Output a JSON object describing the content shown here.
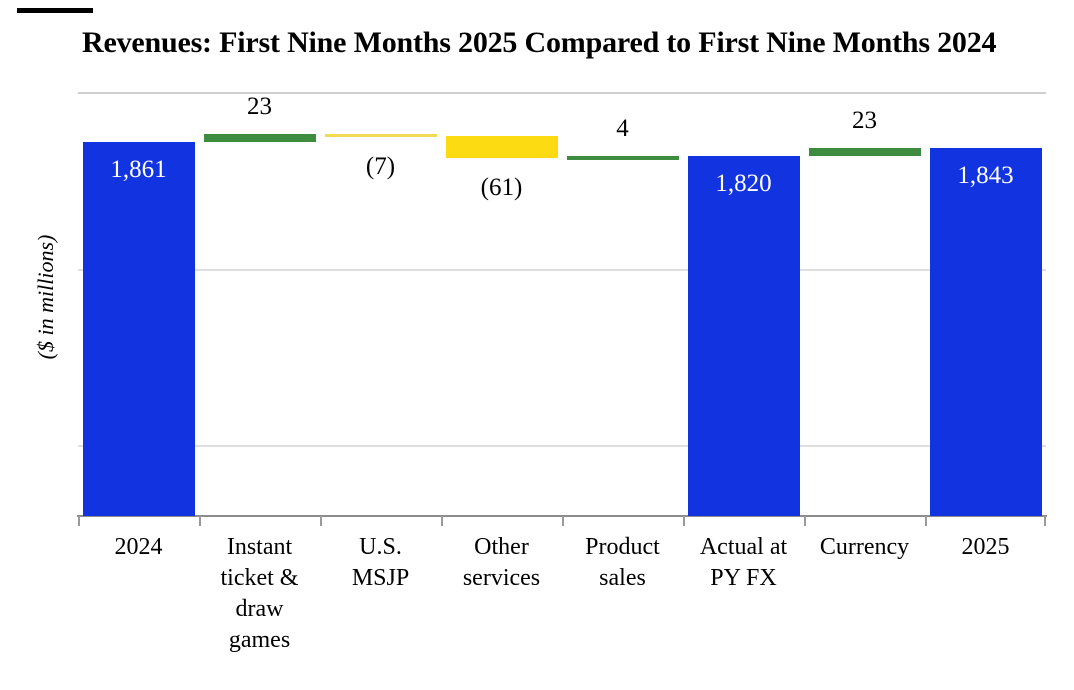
{
  "page": {
    "title": "Revenues: First Nine Months 2025 Compared to First Nine Months 2024",
    "ylabel": "($ in millions)"
  },
  "colors": {
    "blue": "#1233e0",
    "green": "#3d8c40",
    "yellow": "#fcdb12",
    "yellow_light": "#f2dc55",
    "gridline": "#dfdfdf",
    "axis": "#8c8c8c",
    "label_inside": "#ffffff",
    "label_outside": "#000000"
  },
  "chart_data": {
    "type": "bar",
    "subtype": "waterfall",
    "title": "Revenues: First Nine Months 2025 Compared to First Nine Months 2024",
    "xlabel": "",
    "ylabel": "($ in millions)",
    "ylim": [
      800,
      2000
    ],
    "gridline_values": [
      2000,
      1500,
      1000
    ],
    "grid": "on",
    "legend": "none",
    "categories": [
      "2024",
      "Instant ticket & draw games",
      "U.S. MSJP",
      "Other services",
      "Product sales",
      "Actual at PY FX",
      "Currency",
      "2025"
    ],
    "values": [
      1861,
      23,
      -7,
      -61,
      4,
      1820,
      23,
      1843
    ],
    "bars": [
      {
        "label": "2024",
        "value": 1861,
        "display": "1,861",
        "kind": "total",
        "start": 800,
        "end": 1861,
        "color": "blue",
        "label_pos": "inside"
      },
      {
        "label": "Instant ticket & draw games",
        "value": 23,
        "display": "23",
        "kind": "increase",
        "start": 1861,
        "end": 1884,
        "color": "green",
        "label_pos": "above"
      },
      {
        "label": "U.S. MSJP",
        "value": -7,
        "display": "(7)",
        "kind": "decrease",
        "start": 1884,
        "end": 1877,
        "color": "yellow_light",
        "label_pos": "below"
      },
      {
        "label": "Other services",
        "value": -61,
        "display": "(61)",
        "kind": "decrease",
        "start": 1877,
        "end": 1816,
        "color": "yellow",
        "label_pos": "below"
      },
      {
        "label": "Product sales",
        "value": 4,
        "display": "4",
        "kind": "increase",
        "start": 1816,
        "end": 1820,
        "color": "green",
        "label_pos": "above"
      },
      {
        "label": "Actual at PY FX",
        "value": 1820,
        "display": "1,820",
        "kind": "total",
        "start": 800,
        "end": 1820,
        "color": "blue",
        "label_pos": "inside"
      },
      {
        "label": "Currency",
        "value": 23,
        "display": "23",
        "kind": "increase",
        "start": 1820,
        "end": 1843,
        "color": "green",
        "label_pos": "above"
      },
      {
        "label": "2025",
        "value": 1843,
        "display": "1,843",
        "kind": "total",
        "start": 800,
        "end": 1843,
        "color": "blue",
        "label_pos": "inside"
      }
    ],
    "category_labels_multiline": [
      [
        "2024"
      ],
      [
        "Instant",
        "ticket &",
        "draw",
        "games"
      ],
      [
        "U.S.",
        "MSJP"
      ],
      [
        "Other",
        "services"
      ],
      [
        "Product",
        "sales"
      ],
      [
        "Actual at",
        "PY FX"
      ],
      [
        "Currency"
      ],
      [
        "2025"
      ]
    ]
  }
}
